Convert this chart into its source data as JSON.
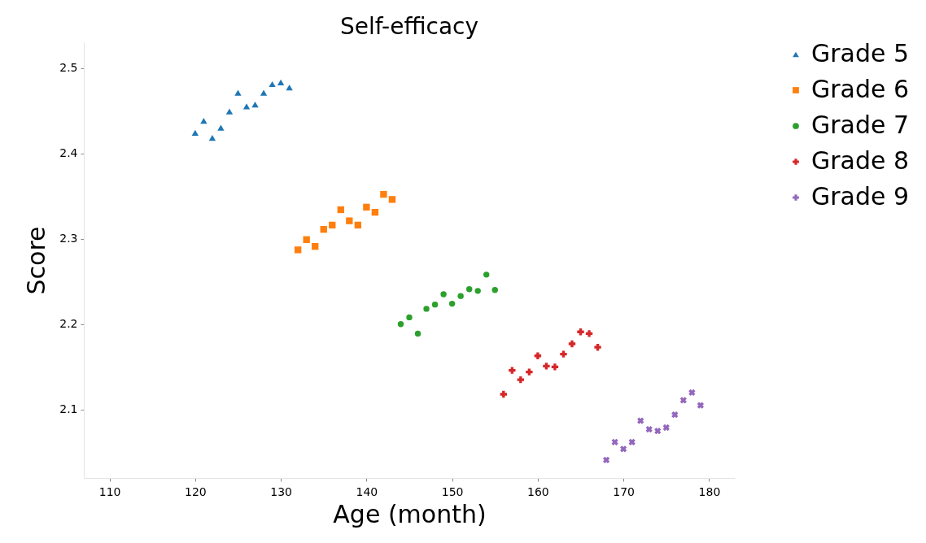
{
  "chart_data": {
    "type": "scatter",
    "title": "Self-efficacy",
    "xlabel": "Age (month)",
    "ylabel": "Score",
    "xlim": [
      107,
      183
    ],
    "xticks": [
      110,
      120,
      130,
      140,
      150,
      160,
      170,
      180
    ],
    "ylim": [
      2.02,
      2.53
    ],
    "yticks": [
      2.1,
      2.2,
      2.3,
      2.4,
      2.5
    ],
    "grid": false,
    "legend": "right",
    "series": [
      {
        "name": "Grade 5",
        "color": "#1f77b4",
        "marker": "triangle",
        "x": [
          120,
          121,
          122,
          123,
          124,
          125,
          126,
          127,
          128,
          129,
          130,
          131
        ],
        "values": [
          2.424,
          2.438,
          2.418,
          2.43,
          2.449,
          2.471,
          2.455,
          2.457,
          2.471,
          2.481,
          2.483,
          2.477
        ]
      },
      {
        "name": "Grade 6",
        "color": "#ff7f0e",
        "marker": "square",
        "x": [
          132,
          133,
          134,
          135,
          136,
          137,
          138,
          139,
          140,
          141,
          142,
          143
        ],
        "values": [
          2.287,
          2.299,
          2.291,
          2.311,
          2.316,
          2.334,
          2.321,
          2.316,
          2.337,
          2.331,
          2.352,
          2.346
        ]
      },
      {
        "name": "Grade 7",
        "color": "#2ca02c",
        "marker": "circle",
        "x": [
          144,
          145,
          146,
          147,
          148,
          149,
          150,
          151,
          152,
          153,
          154,
          155
        ],
        "values": [
          2.2,
          2.208,
          2.189,
          2.218,
          2.223,
          2.235,
          2.224,
          2.233,
          2.241,
          2.239,
          2.258,
          2.24
        ]
      },
      {
        "name": "Grade 8",
        "color": "#d62728",
        "marker": "plus",
        "x": [
          156,
          157,
          158,
          159,
          160,
          161,
          162,
          163,
          164,
          165,
          166,
          167
        ],
        "values": [
          2.118,
          2.146,
          2.135,
          2.144,
          2.163,
          2.151,
          2.15,
          2.165,
          2.177,
          2.191,
          2.189,
          2.173
        ]
      },
      {
        "name": "Grade 9",
        "color": "#9467bd",
        "marker": "cross",
        "x": [
          168,
          169,
          170,
          171,
          172,
          173,
          174,
          175,
          176,
          177,
          178,
          179
        ],
        "values": [
          2.041,
          2.062,
          2.054,
          2.062,
          2.087,
          2.077,
          2.075,
          2.079,
          2.094,
          2.111,
          2.12,
          2.105
        ]
      }
    ]
  }
}
